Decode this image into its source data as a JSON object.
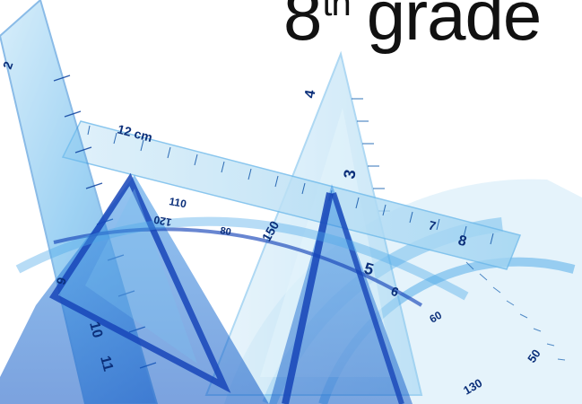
{
  "title": {
    "number": "8",
    "suffix": "th",
    "word": "grade"
  },
  "ruler_marks": [
    "2",
    "3",
    "4",
    "5",
    "6",
    "7",
    "8",
    "9",
    "10",
    "11",
    "12 cm",
    "60",
    "80",
    "110",
    "120",
    "130",
    "150",
    "50"
  ],
  "colors": {
    "tool_light": "#9ed3f2",
    "tool_mid": "#4aa8e8",
    "tool_deep": "#1f6fd1",
    "tool_edge": "#0b3f9e",
    "background": "#ffffff"
  }
}
